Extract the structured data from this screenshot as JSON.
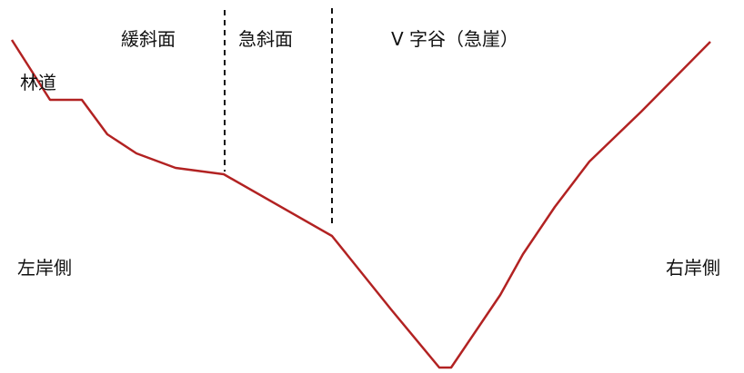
{
  "labels": {
    "gentle_slope": "緩斜面",
    "steep_slope": "急斜面",
    "v_valley": "V 字谷（急崖）",
    "forest_road": "林道",
    "left_bank": "左岸側",
    "right_bank": "右岸側"
  },
  "colors": {
    "profile_line": "#b22222",
    "divider": "#111111",
    "text": "#111111"
  }
}
